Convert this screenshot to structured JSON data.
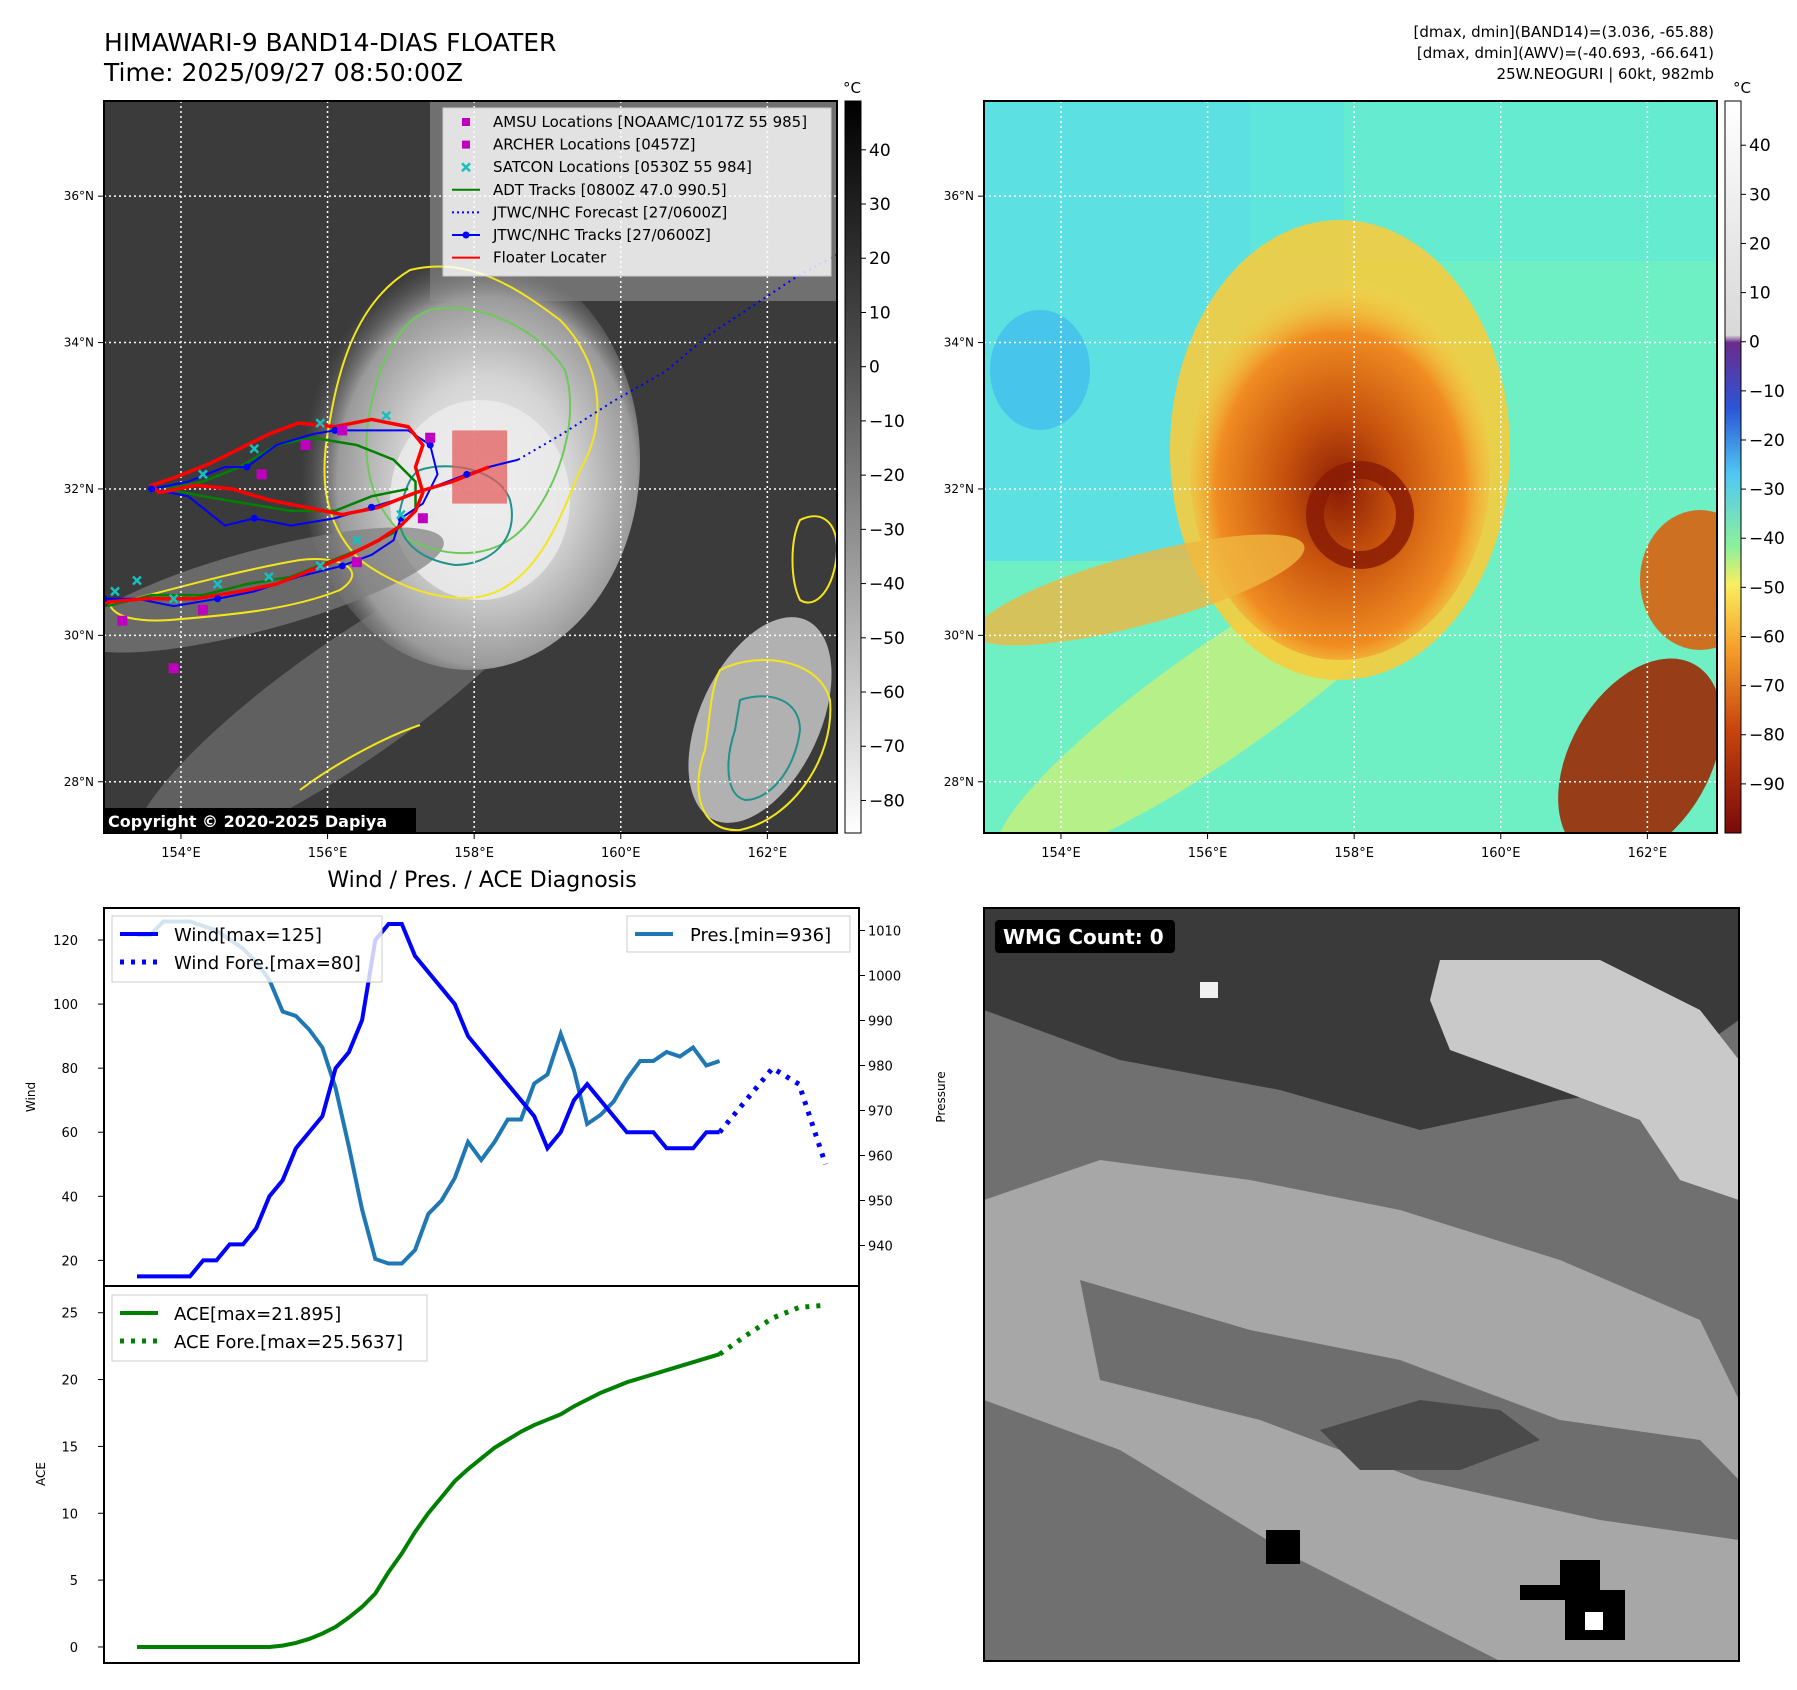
{
  "header": {
    "title_line1": "HIMAWARI-9 BAND14-DIAS FLOATER",
    "title_line2": "Time: 2025/09/27 08:50:00Z",
    "info_line1": "[dmax, dmin](BAND14)=(3.036, -65.88)",
    "info_line2": "[dmax, dmin](AWV)=(-40.693, -66.641)",
    "info_line3": "25W.NEOGURI | 60kt, 982mb"
  },
  "map": {
    "lat_labels": [
      "36°N",
      "34°N",
      "32°N",
      "30°N",
      "28°N"
    ],
    "lat_values": [
      36,
      34,
      32,
      30,
      28
    ],
    "lon_labels": [
      "154°E",
      "156°E",
      "158°E",
      "160°E",
      "162°E"
    ],
    "lon_values": [
      154,
      156,
      158,
      160,
      162
    ],
    "lon_range": [
      152.95,
      162.95
    ],
    "lat_range": [
      27.3,
      37.3
    ],
    "copyright": "Copyright © 2020-2025 Dapiya",
    "legend": [
      {
        "label": "AMSU Locations [NOAAMC/1017Z 55 985]",
        "marker": "square",
        "color": "#bf00bf"
      },
      {
        "label": "ARCHER Locations [0457Z]",
        "marker": "square",
        "color": "#bf00bf"
      },
      {
        "label": "SATCON Locations [0530Z 55 984]",
        "marker": "x",
        "color": "#17bfbf"
      },
      {
        "label": "ADT Tracks [0800Z 47.0 990.5]",
        "marker": "line",
        "color": "#008000"
      },
      {
        "label": "JTWC/NHC Forecast [27/0600Z]",
        "marker": "dotted",
        "color": "#0000ff"
      },
      {
        "label": "JTWC/NHC Tracks [27/0600Z]",
        "marker": "line-dot",
        "color": "#0000ff"
      },
      {
        "label": "Floater Locater",
        "marker": "line",
        "color": "#ff0000"
      }
    ],
    "jtwc_track": [
      [
        152.95,
        30.5
      ],
      [
        153.4,
        30.5
      ],
      [
        153.9,
        30.4
      ],
      [
        154.5,
        30.5
      ],
      [
        155.0,
        30.6
      ],
      [
        155.6,
        30.8
      ],
      [
        156.2,
        30.95
      ],
      [
        156.6,
        31.1
      ],
      [
        156.9,
        31.3
      ],
      [
        157.0,
        31.6
      ],
      [
        157.3,
        31.8
      ],
      [
        157.5,
        32.2
      ],
      [
        157.4,
        32.6
      ],
      [
        157.1,
        32.8
      ],
      [
        156.6,
        32.8
      ],
      [
        156.1,
        32.8
      ],
      [
        155.8,
        32.75
      ],
      [
        155.3,
        32.6
      ],
      [
        154.9,
        32.3
      ],
      [
        154.6,
        32.3
      ],
      [
        154.1,
        32.1
      ],
      [
        153.6,
        32.0
      ],
      [
        154.1,
        31.9
      ],
      [
        154.6,
        31.5
      ],
      [
        155.0,
        31.6
      ],
      [
        155.5,
        31.5
      ],
      [
        156.1,
        31.6
      ],
      [
        156.6,
        31.75
      ],
      [
        157.1,
        31.9
      ],
      [
        157.5,
        32.05
      ],
      [
        157.9,
        32.2
      ],
      [
        158.2,
        32.3
      ],
      [
        158.6,
        32.4
      ]
    ],
    "jtwc_forecast": [
      [
        158.6,
        32.4
      ],
      [
        159.2,
        32.75
      ],
      [
        159.9,
        33.2
      ],
      [
        160.6,
        33.6
      ],
      [
        161.2,
        34.1
      ],
      [
        161.8,
        34.5
      ],
      [
        162.4,
        34.9
      ],
      [
        162.95,
        35.2
      ]
    ],
    "floater_track": [
      [
        152.95,
        30.45
      ],
      [
        153.5,
        30.5
      ],
      [
        154.2,
        30.5
      ],
      [
        154.8,
        30.6
      ],
      [
        155.3,
        30.7
      ],
      [
        155.8,
        30.9
      ],
      [
        156.3,
        31.1
      ],
      [
        156.7,
        31.3
      ],
      [
        157.0,
        31.5
      ],
      [
        157.2,
        31.7
      ],
      [
        157.3,
        31.95
      ],
      [
        157.2,
        32.3
      ],
      [
        157.3,
        32.6
      ],
      [
        157.1,
        32.85
      ],
      [
        156.6,
        32.95
      ],
      [
        156.1,
        32.85
      ],
      [
        155.6,
        32.9
      ],
      [
        155.2,
        32.75
      ],
      [
        154.8,
        32.55
      ],
      [
        154.4,
        32.35
      ],
      [
        153.9,
        32.15
      ],
      [
        153.6,
        32.05
      ],
      [
        153.7,
        31.95
      ],
      [
        154.2,
        32.05
      ],
      [
        154.7,
        32.0
      ],
      [
        155.2,
        31.85
      ],
      [
        155.7,
        31.75
      ],
      [
        156.2,
        31.65
      ],
      [
        156.7,
        31.75
      ],
      [
        157.2,
        31.95
      ],
      [
        157.7,
        32.1
      ],
      [
        158.2,
        32.3
      ]
    ],
    "adt_track": [
      [
        153.0,
        30.4
      ],
      [
        153.6,
        30.55
      ],
      [
        154.3,
        30.55
      ],
      [
        154.9,
        30.7
      ],
      [
        155.5,
        30.8
      ],
      [
        156.0,
        31.0
      ],
      [
        156.5,
        31.2
      ],
      [
        156.9,
        31.4
      ],
      [
        157.2,
        31.7
      ],
      [
        157.2,
        32.1
      ],
      [
        156.9,
        32.4
      ],
      [
        156.4,
        32.6
      ],
      [
        155.8,
        32.7
      ],
      [
        155.3,
        32.6
      ],
      [
        154.8,
        32.3
      ],
      [
        154.3,
        32.1
      ],
      [
        153.8,
        32.0
      ],
      [
        154.3,
        31.9
      ],
      [
        154.9,
        31.8
      ],
      [
        155.5,
        31.7
      ],
      [
        156.1,
        31.7
      ],
      [
        156.6,
        31.9
      ],
      [
        157.1,
        32.0
      ]
    ],
    "amsu_points": [
      [
        153.2,
        30.2
      ],
      [
        153.9,
        29.55
      ],
      [
        154.3,
        30.35
      ],
      [
        155.1,
        32.2
      ],
      [
        155.7,
        32.6
      ],
      [
        156.2,
        32.8
      ],
      [
        157.3,
        31.6
      ],
      [
        156.4,
        31.0
      ],
      [
        157.4,
        32.7
      ]
    ],
    "satcon_points": [
      [
        153.1,
        30.6
      ],
      [
        153.4,
        30.75
      ],
      [
        153.9,
        30.5
      ],
      [
        154.5,
        30.7
      ],
      [
        155.2,
        30.8
      ],
      [
        155.9,
        30.95
      ],
      [
        156.4,
        31.3
      ],
      [
        157.0,
        31.65
      ],
      [
        156.8,
        33.0
      ],
      [
        155.9,
        32.9
      ],
      [
        155.0,
        32.55
      ],
      [
        154.3,
        32.2
      ]
    ],
    "floater_box": {
      "lon": [
        157.7,
        158.45
      ],
      "lat": [
        31.8,
        32.8
      ]
    }
  },
  "colorbar_left": {
    "unit": "°C",
    "ticks": [
      "40",
      "30",
      "20",
      "10",
      "0",
      "−10",
      "−20",
      "−30",
      "−40",
      "−50",
      "−60",
      "−70",
      "−80"
    ],
    "values": [
      40,
      30,
      20,
      10,
      0,
      -10,
      -20,
      -30,
      -40,
      -50,
      -60,
      -70,
      -80
    ],
    "range": [
      49,
      -86
    ]
  },
  "colorbar_right": {
    "unit": "°C",
    "ticks": [
      "40",
      "30",
      "20",
      "10",
      "0",
      "−10",
      "−20",
      "−30",
      "−40",
      "−50",
      "−60",
      "−70",
      "−80",
      "−90"
    ],
    "values": [
      40,
      30,
      20,
      10,
      0,
      -10,
      -20,
      -30,
      -40,
      -50,
      -60,
      -70,
      -80,
      -90
    ],
    "range": [
      49,
      -100
    ]
  },
  "chart_data": [
    {
      "type": "line",
      "title": "Wind / Pres. / ACE Diagnosis",
      "ylabel": "Wind",
      "y2label": "Pressure",
      "ylim": [
        12,
        130
      ],
      "y2lim": [
        931,
        1015
      ],
      "yticks": [
        20,
        40,
        60,
        80,
        100,
        120
      ],
      "y2ticks": [
        940,
        950,
        960,
        970,
        980,
        990,
        1000,
        1010
      ],
      "series": [
        {
          "name": "Wind[max=125]",
          "axis": "left",
          "color": "#0000ff",
          "style": "solid",
          "x": [
            0,
            1,
            2,
            3,
            4,
            5,
            6,
            7,
            8,
            9,
            10,
            11,
            12,
            13,
            14,
            15,
            16,
            17,
            18,
            19,
            20,
            21,
            22,
            23,
            24,
            25,
            26,
            27,
            28,
            29,
            30,
            31,
            32,
            33,
            34,
            35,
            36,
            37,
            38,
            39,
            40,
            41,
            42,
            43,
            44,
            45,
            46
          ],
          "values": [
            15,
            15,
            15,
            15,
            15,
            20,
            20,
            25,
            25,
            30,
            40,
            45,
            55,
            60,
            65,
            80,
            85,
            95,
            120,
            125,
            125,
            115,
            110,
            105,
            100,
            90,
            85,
            80,
            75,
            70,
            65,
            55,
            60,
            70,
            75,
            70,
            65,
            60,
            60,
            60,
            55,
            55,
            55,
            60,
            60,
            null,
            null
          ]
        },
        {
          "name": "Wind Fore.[max=80]",
          "axis": "left",
          "color": "#0000ff",
          "style": "dotted",
          "x": [
            44,
            46,
            48,
            50,
            52
          ],
          "values": [
            60,
            70,
            80,
            75,
            50
          ]
        },
        {
          "name": "Pres.[min=936]",
          "axis": "right",
          "color": "#1f77b4",
          "style": "solid",
          "x": [
            0,
            1,
            2,
            3,
            4,
            5,
            6,
            7,
            8,
            9,
            10,
            11,
            12,
            13,
            14,
            15,
            16,
            17,
            18,
            19,
            20,
            21,
            22,
            23,
            24,
            25,
            26,
            27,
            28,
            29,
            30,
            31,
            32,
            33,
            34,
            35,
            36,
            37,
            38,
            39,
            40,
            41,
            42,
            43,
            44,
            45
          ],
          "values": [
            1009,
            1009,
            1012,
            1012,
            1012,
            1011,
            1010,
            1008,
            1006,
            1003,
            999,
            992,
            991,
            988,
            984,
            975,
            962,
            948,
            937,
            936,
            936,
            939,
            947,
            950,
            955,
            963,
            959,
            963,
            968,
            968,
            976,
            978,
            987,
            979,
            967,
            969,
            972,
            977,
            981,
            981,
            983,
            982,
            984,
            980,
            981,
            null
          ]
        }
      ]
    },
    {
      "type": "line",
      "ylabel": "ACE",
      "ylim": [
        -1.2,
        27
      ],
      "yticks": [
        0,
        5,
        10,
        15,
        20,
        25
      ],
      "series": [
        {
          "name": "ACE[max=21.895]",
          "color": "#008000",
          "style": "solid",
          "x": [
            0,
            2,
            4,
            6,
            8,
            10,
            11,
            12,
            13,
            14,
            15,
            16,
            17,
            18,
            19,
            20,
            21,
            22,
            23,
            24,
            25,
            26,
            27,
            28,
            29,
            30,
            31,
            32,
            33,
            34,
            35,
            36,
            37,
            38,
            39,
            40,
            41,
            42,
            43,
            44
          ],
          "values": [
            0,
            0,
            0,
            0,
            0,
            0,
            0.1,
            0.3,
            0.6,
            1.0,
            1.5,
            2.2,
            3.0,
            4.0,
            5.6,
            7.0,
            8.6,
            10.0,
            11.2,
            12.4,
            13.3,
            14.1,
            14.9,
            15.5,
            16.1,
            16.6,
            17.0,
            17.4,
            18.0,
            18.5,
            19.0,
            19.4,
            19.8,
            20.1,
            20.4,
            20.7,
            21.0,
            21.3,
            21.6,
            21.9
          ]
        },
        {
          "name": "ACE Fore.[max=25.5637]",
          "color": "#008000",
          "style": "dotted",
          "x": [
            44,
            46,
            48,
            50,
            52
          ],
          "values": [
            21.9,
            23.3,
            24.6,
            25.4,
            25.56
          ]
        }
      ]
    }
  ],
  "wmg": {
    "label": "WMG Count: 0"
  },
  "colors": {
    "ir_bg": "#3b3b3b",
    "contour_yellow": "#f5e51c",
    "contour_green": "#6ec85a",
    "contour_teal": "#20918c",
    "wind_blue": "#0000ff",
    "pres_blue": "#1f77b4",
    "ace_green": "#008000"
  }
}
